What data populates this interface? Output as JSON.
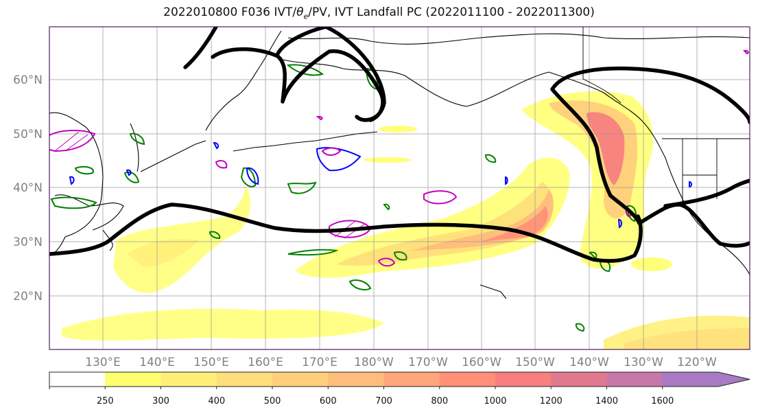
{
  "title_pre": "2022010800 F036 IVT/",
  "title_theta": "θ",
  "title_sub": "e",
  "title_post": "/PV, IVT Landfall PC (2022011100 - 2022011300)",
  "lat_labels": [
    "60°N",
    "50°N",
    "40°N",
    "30°N",
    "20°N"
  ],
  "lon_labels": [
    "130°E",
    "140°E",
    "150°E",
    "160°E",
    "170°E",
    "180°W",
    "170°W",
    "160°W",
    "150°W",
    "140°W",
    "130°W",
    "120°W"
  ],
  "colorbar": {
    "levels": [
      "250",
      "300",
      "400",
      "500",
      "600",
      "700",
      "800",
      "1000",
      "1200",
      "1400",
      "1600"
    ],
    "colors": [
      "#ffffff",
      "#ffff6e",
      "#ffef78",
      "#ffdf7b",
      "#ffcf7c",
      "#ffbd7c",
      "#ffa67a",
      "#ff8f77",
      "#f77f7f",
      "#e0788e",
      "#c679a8",
      "#a77ac3"
    ]
  },
  "colors": {
    "coastline": "#000000",
    "frame": "#4b1f5c",
    "pc_contour": "#000000",
    "thetae_contour": "#008000",
    "pv_contour": "#0000ff",
    "pv_high_contour": "#c000c0"
  }
}
